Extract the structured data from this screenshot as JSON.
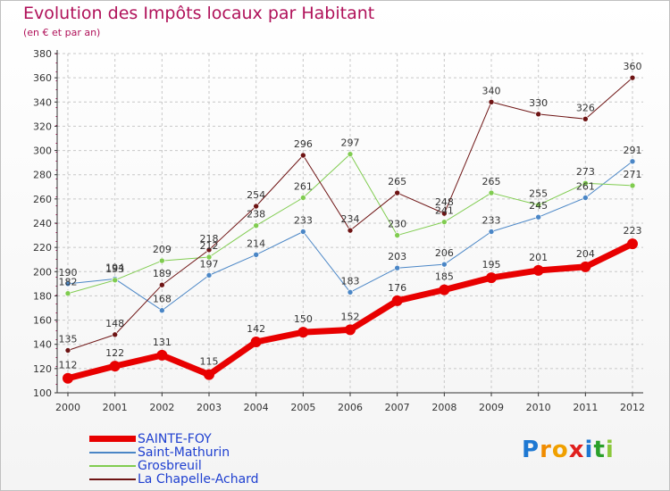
{
  "header": {
    "title": "Evolution des Impôts locaux par Habitant",
    "subtitle": "(en € et par an)"
  },
  "colors": {
    "title": "#b0125a",
    "legend_text": "#1e3fd0",
    "grid": "#c8c8c8",
    "axis": "#333333"
  },
  "logo": {
    "letters": [
      {
        "ch": "P",
        "color": "#1e78d2"
      },
      {
        "ch": "r",
        "color": "#f08c00"
      },
      {
        "ch": "o",
        "color": "#f0a000"
      },
      {
        "ch": "x",
        "color": "#e0201e"
      },
      {
        "ch": "i",
        "color": "#1e78d2"
      },
      {
        "ch": "t",
        "color": "#2aa02a"
      },
      {
        "ch": "i",
        "color": "#8cc83c"
      }
    ]
  },
  "chart_data": {
    "type": "line",
    "title": "Evolution des Impôts locaux par Habitant",
    "subtitle": "(en € et par an)",
    "xlabel": "",
    "ylabel": "",
    "x": [
      2000,
      2001,
      2002,
      2003,
      2004,
      2005,
      2006,
      2007,
      2008,
      2009,
      2010,
      2011,
      2012
    ],
    "ylim": [
      100,
      380
    ],
    "yticks": [
      100,
      120,
      140,
      160,
      180,
      200,
      220,
      240,
      260,
      280,
      300,
      320,
      340,
      360,
      380
    ],
    "grid": true,
    "legend_position": "bottom-left",
    "series": [
      {
        "name": "Saint-Mathurin",
        "color": "#4a86c6",
        "line_width": 1,
        "values": [
          190,
          194,
          168,
          197,
          214,
          233,
          183,
          203,
          206,
          233,
          245,
          261,
          291
        ]
      },
      {
        "name": "Grosbreuil",
        "color": "#80cc50",
        "line_width": 1,
        "values": [
          182,
          193,
          209,
          212,
          238,
          261,
          297,
          230,
          241,
          265,
          255,
          273,
          271
        ]
      },
      {
        "name": "La Chapelle-Achard",
        "color": "#6e1414",
        "line_width": 1,
        "values": [
          135,
          148,
          189,
          218,
          254,
          296,
          234,
          265,
          248,
          340,
          330,
          326,
          360
        ]
      },
      {
        "name": "SAINTE-FOY",
        "color": "#e80000",
        "line_width": 7,
        "values": [
          112,
          122,
          131,
          115,
          142,
          150,
          152,
          176,
          185,
          195,
          201,
          204,
          223
        ]
      }
    ],
    "legend_order": [
      "SAINTE-FOY",
      "Saint-Mathurin",
      "Grosbreuil",
      "La Chapelle-Achard"
    ]
  }
}
